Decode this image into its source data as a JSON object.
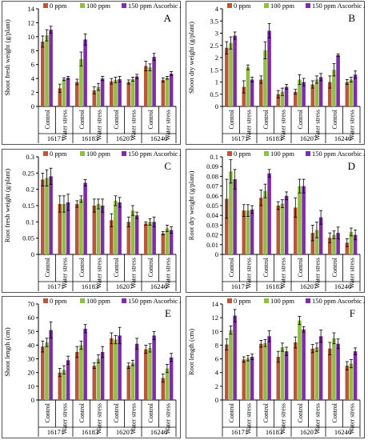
{
  "legend_labels": [
    "0 ppm",
    "100 ppm",
    "150 ppm Ascorbic Acid"
  ],
  "colors": {
    "series": [
      "#b8583a",
      "#8fbe40",
      "#7b2ea8"
    ],
    "axis": "#000000",
    "frame": "#555555",
    "error_bar": "#000000",
    "background": "#ffffff"
  },
  "chart_data": [
    {
      "panel": "A",
      "type": "bar",
      "ylabel": "Shoot fresh weight (g/plant)",
      "ylim": [
        0,
        14
      ],
      "yticks": [
        0,
        2,
        4,
        6,
        8,
        10,
        12,
        14
      ],
      "ytick_labels": [
        "0",
        "2",
        "4",
        "6",
        "8",
        "10",
        "12",
        "14"
      ],
      "groups": [
        "16171",
        "16183",
        "16207",
        "16246"
      ],
      "treatments": [
        "Control",
        "Water stress"
      ],
      "series": [
        {
          "name": "0 ppm",
          "values": [
            9.3,
            2.6,
            3.5,
            2.3,
            3.6,
            3.5,
            5.8,
            3.8
          ],
          "errors": [
            0.8,
            0.6,
            0.4,
            0.5,
            0.4,
            0.3,
            0.7,
            0.3
          ]
        },
        {
          "name": "100 ppm",
          "values": [
            10.2,
            3.9,
            6.8,
            2.8,
            3.8,
            3.9,
            5.6,
            4.1
          ],
          "errors": [
            0.8,
            0.2,
            1.0,
            0.5,
            0.4,
            0.3,
            0.5,
            0.2
          ]
        },
        {
          "name": "150 ppm Ascorbic Acid",
          "values": [
            11.0,
            4.1,
            9.6,
            4.0,
            3.9,
            4.3,
            7.1,
            4.7
          ],
          "errors": [
            0.5,
            0.2,
            0.8,
            0.3,
            0.4,
            0.3,
            0.5,
            0.3
          ]
        }
      ]
    },
    {
      "panel": "B",
      "type": "bar",
      "ylabel": "Shoot dry weight (g/plant)",
      "ylim": [
        0,
        4
      ],
      "yticks": [
        0,
        0.5,
        1,
        1.5,
        2,
        2.5,
        3,
        3.5,
        4
      ],
      "ytick_labels": [
        "0",
        "0.5",
        "1",
        "1.5",
        "2",
        "2.5",
        "3",
        "3.5",
        "4"
      ],
      "groups": [
        "16171",
        "16183",
        "16207",
        "16246"
      ],
      "treatments": [
        "Control",
        "Water stress"
      ],
      "series": [
        {
          "name": "0 ppm",
          "values": [
            2.4,
            0.8,
            1.1,
            0.5,
            0.6,
            0.9,
            1.0,
            1.0
          ],
          "errors": [
            0.25,
            0.25,
            0.15,
            0.15,
            0.1,
            0.15,
            0.25,
            0.1
          ]
        },
        {
          "name": "100 ppm",
          "values": [
            2.6,
            1.6,
            2.3,
            0.6,
            1.1,
            1.1,
            1.5,
            1.1
          ],
          "errors": [
            0.25,
            0.1,
            0.35,
            0.15,
            0.2,
            0.15,
            0.25,
            0.1
          ]
        },
        {
          "name": "150 ppm Ascorbic Acid",
          "values": [
            2.9,
            1.1,
            3.1,
            0.8,
            1.0,
            1.2,
            2.1,
            1.3
          ],
          "errors": [
            0.15,
            0.1,
            0.3,
            0.1,
            0.15,
            0.15,
            0.05,
            0.15
          ]
        }
      ]
    },
    {
      "panel": "C",
      "type": "bar",
      "ylabel": "Root fresh weight (g/plant)",
      "ylim": [
        0,
        0.3
      ],
      "yticks": [
        0,
        0.05,
        0.1,
        0.15,
        0.2,
        0.25,
        0.3
      ],
      "ytick_labels": [
        "0",
        "0.05",
        "0.1",
        "0.15",
        "0.2",
        "0.25",
        "0.3"
      ],
      "groups": [
        "16171",
        "16183",
        "16207",
        "16246"
      ],
      "treatments": [
        "Control",
        "Water stress"
      ],
      "series": [
        {
          "name": "0 ppm",
          "values": [
            0.23,
            0.155,
            0.155,
            0.15,
            0.105,
            0.1,
            0.095,
            0.065
          ],
          "errors": [
            0.02,
            0.025,
            0.01,
            0.02,
            0.02,
            0.015,
            0.005,
            0.005
          ]
        },
        {
          "name": "100 ppm",
          "values": [
            0.235,
            0.155,
            0.17,
            0.155,
            0.165,
            0.135,
            0.1,
            0.08
          ],
          "errors": [
            0.025,
            0.025,
            0.01,
            0.015,
            0.015,
            0.015,
            0.01,
            0.01
          ]
        },
        {
          "name": "150 ppm Ascorbic Acid",
          "values": [
            0.24,
            0.16,
            0.22,
            0.15,
            0.16,
            0.12,
            0.1,
            0.075
          ],
          "errors": [
            0.025,
            0.025,
            0.01,
            0.02,
            0.015,
            0.01,
            0.015,
            0.01
          ]
        }
      ]
    },
    {
      "panel": "D",
      "type": "bar",
      "ylabel": "Root dry weight (g/plant)",
      "ylim": [
        0,
        0.1
      ],
      "yticks": [
        0,
        0.01,
        0.02,
        0.03,
        0.04,
        0.05,
        0.06,
        0.07,
        0.08,
        0.09,
        0.1
      ],
      "ytick_labels": [
        "0",
        "0.01",
        "0.02",
        "0.03",
        "0.04",
        "0.05",
        "0.06",
        "0.07",
        "0.08",
        "0.09",
        "0.1"
      ],
      "groups": [
        "16171",
        "16183",
        "16207",
        "16246"
      ],
      "treatments": [
        "Control",
        "Water stress"
      ],
      "series": [
        {
          "name": "0 ppm",
          "values": [
            0.057,
            0.045,
            0.058,
            0.05,
            0.048,
            0.022,
            0.017,
            0.012
          ],
          "errors": [
            0.02,
            0.006,
            0.008,
            0.004,
            0.01,
            0.008,
            0.005,
            0.004
          ]
        },
        {
          "name": "100 ppm",
          "values": [
            0.085,
            0.045,
            0.065,
            0.052,
            0.07,
            0.025,
            0.02,
            0.023
          ],
          "errors": [
            0.012,
            0.006,
            0.007,
            0.004,
            0.007,
            0.008,
            0.004,
            0.004
          ]
        },
        {
          "name": "150 ppm Ascorbic Acid",
          "values": [
            0.077,
            0.046,
            0.083,
            0.06,
            0.07,
            0.038,
            0.022,
            0.02
          ],
          "errors": [
            0.01,
            0.004,
            0.004,
            0.004,
            0.007,
            0.007,
            0.006,
            0.005
          ]
        }
      ]
    },
    {
      "panel": "E",
      "type": "bar",
      "ylabel": "Shoot length (cm)",
      "ylim": [
        0,
        70
      ],
      "yticks": [
        0,
        10,
        20,
        30,
        40,
        50,
        60,
        70
      ],
      "ytick_labels": [
        "0",
        "10",
        "20",
        "30",
        "40",
        "50",
        "60",
        "70"
      ],
      "groups": [
        "16171",
        "16183",
        "16207",
        "16246"
      ],
      "treatments": [
        "Control",
        "Water stress"
      ],
      "series": [
        {
          "name": "0 ppm",
          "values": [
            39,
            20,
            35,
            25,
            45,
            25,
            37,
            16
          ],
          "errors": [
            4,
            3,
            4,
            2,
            4,
            2,
            3,
            3
          ]
        },
        {
          "name": "100 ppm",
          "values": [
            42,
            22,
            40,
            30,
            44,
            27,
            38,
            23
          ],
          "errors": [
            3,
            3,
            3,
            3,
            3,
            2,
            3,
            3
          ]
        },
        {
          "name": "150 ppm Ascorbic Acid",
          "values": [
            51,
            29,
            52,
            35,
            47,
            41,
            47,
            31
          ],
          "errors": [
            6,
            3,
            3,
            4,
            6,
            4,
            3,
            3
          ]
        }
      ]
    },
    {
      "panel": "F",
      "type": "bar",
      "ylabel": "Root length (cm)",
      "ylim": [
        0,
        14
      ],
      "yticks": [
        0,
        2,
        4,
        6,
        8,
        10,
        12,
        14
      ],
      "ytick_labels": [
        "0",
        "2",
        "4",
        "6",
        "8",
        "10",
        "12",
        "14"
      ],
      "groups": [
        "16171",
        "16183",
        "16207",
        "16246"
      ],
      "treatments": [
        "Control",
        "Water stress"
      ],
      "series": [
        {
          "name": "0 ppm",
          "values": [
            8.1,
            5.9,
            8.2,
            6.3,
            8.4,
            7.5,
            7.5,
            5.0
          ],
          "errors": [
            0.8,
            0.4,
            0.5,
            0.8,
            0.8,
            0.6,
            0.9,
            0.6
          ]
        },
        {
          "name": "100 ppm",
          "values": [
            10.2,
            6.1,
            8.3,
            7.7,
            11.6,
            7.7,
            9.0,
            5.3
          ],
          "errors": [
            0.6,
            0.4,
            0.5,
            0.6,
            0.6,
            0.6,
            0.8,
            0.6
          ]
        },
        {
          "name": "150 ppm Ascorbic Acid",
          "values": [
            12.3,
            6.3,
            9.3,
            7.1,
            10.3,
            9.3,
            8.2,
            7.1
          ],
          "errors": [
            0.9,
            0.4,
            0.8,
            0.6,
            0.4,
            0.9,
            0.7,
            0.5
          ]
        }
      ]
    }
  ]
}
